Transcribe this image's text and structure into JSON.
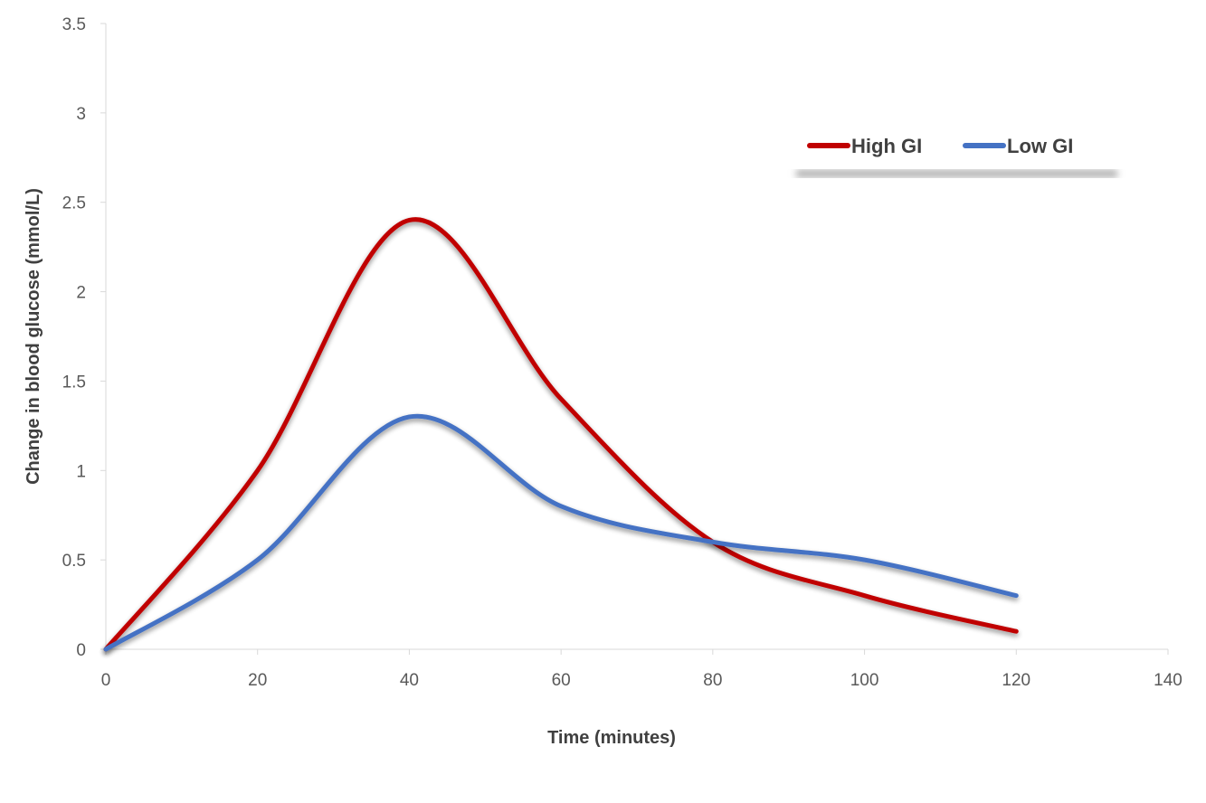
{
  "chart_data": {
    "type": "line",
    "title": "",
    "xlabel": "Time (minutes)",
    "ylabel": "Change in blood glucose (mmol/L)",
    "xlim": [
      0,
      140
    ],
    "ylim": [
      0,
      3.5
    ],
    "xticks": [
      "0",
      "20",
      "40",
      "60",
      "80",
      "100",
      "120",
      "140"
    ],
    "yticks": [
      "0",
      "0.5",
      "1",
      "1.5",
      "2",
      "2.5",
      "3",
      "3.5"
    ],
    "grid": false,
    "smooth": true,
    "legend_position": "top-right",
    "x": [
      0,
      20,
      40,
      60,
      80,
      100,
      120
    ],
    "series": [
      {
        "name": "High GI",
        "color": "#C00000",
        "values": [
          0,
          1.0,
          2.4,
          1.4,
          0.6,
          0.3,
          0.1
        ]
      },
      {
        "name": "Low GI",
        "color": "#4472C4",
        "values": [
          0,
          0.5,
          1.3,
          0.8,
          0.6,
          0.5,
          0.3
        ]
      }
    ]
  }
}
